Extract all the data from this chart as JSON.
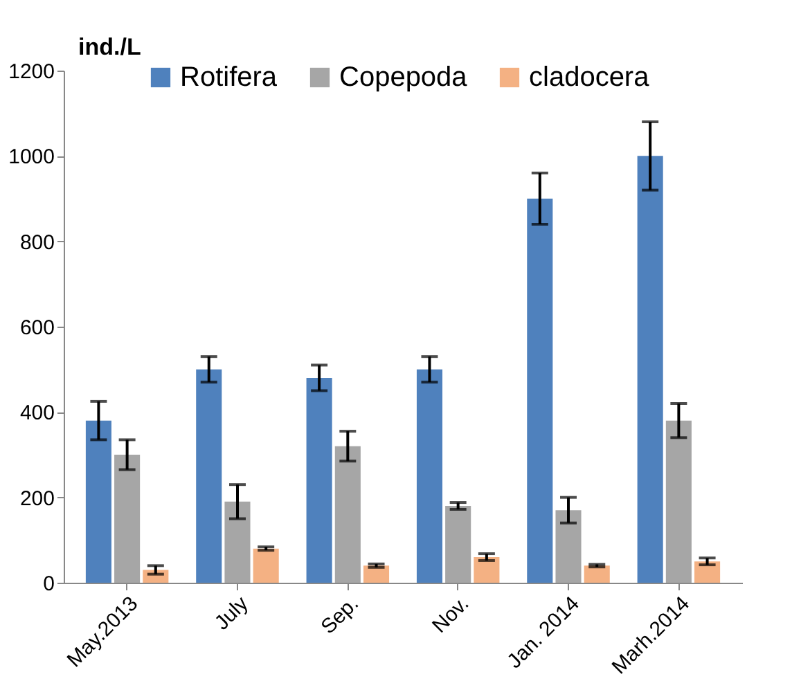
{
  "chart_data": {
    "type": "bar",
    "ylabel": "ind./L",
    "categories": [
      "May.2013",
      "July",
      "Sep.",
      "Nov.",
      "Jan. 2014",
      "Marh.2014"
    ],
    "series": [
      {
        "name": "Rotifera",
        "color": "#4f81bd",
        "values": [
          380,
          500,
          480,
          500,
          900,
          1000
        ],
        "errors": [
          45,
          30,
          30,
          30,
          60,
          80
        ]
      },
      {
        "name": "Copepoda",
        "color": "#a6a6a6",
        "values": [
          300,
          190,
          320,
          180,
          170,
          380
        ],
        "errors": [
          35,
          40,
          35,
          8,
          30,
          40
        ]
      },
      {
        "name": "cladocera",
        "color": "#f4b183",
        "values": [
          30,
          80,
          40,
          60,
          40,
          50
        ],
        "errors": [
          10,
          4,
          4,
          8,
          3,
          8
        ]
      }
    ],
    "ylim": [
      0,
      1200
    ],
    "yticks": [
      0,
      200,
      400,
      600,
      800,
      1000,
      1200
    ],
    "grid": false,
    "legend": "top right"
  }
}
